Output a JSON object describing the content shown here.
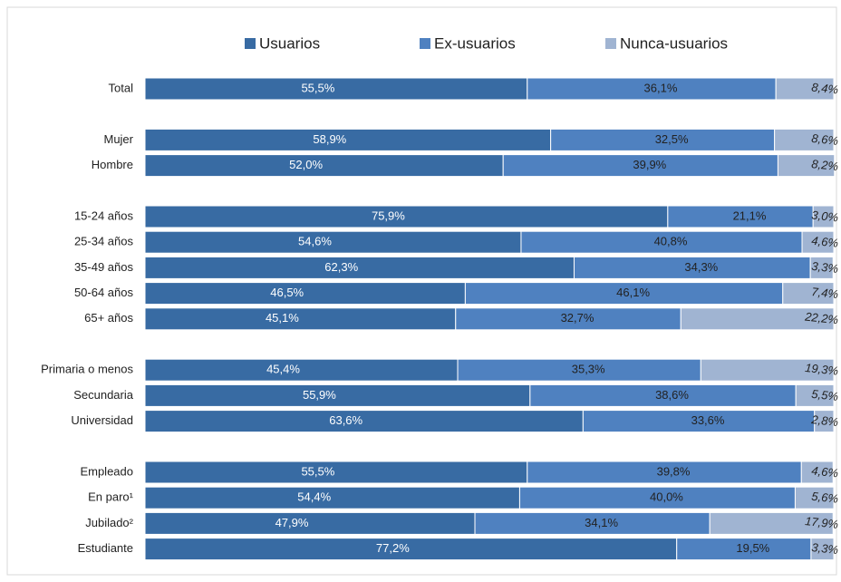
{
  "chart_data": {
    "type": "stacked-bar-horizontal",
    "categories": [
      "Total",
      null,
      "Mujer",
      "Hombre",
      null,
      "15-24 años",
      "25-34 años",
      "35-49 años",
      "50-64 años",
      "65+ años",
      null,
      "Primaria o menos",
      "Secundaria",
      "Universidad",
      null,
      "Empleado",
      "En paro¹",
      "Jubilado²",
      "Estudiante"
    ],
    "series": [
      {
        "name": "Usuarios",
        "color": "#386ba3",
        "values": [
          55.5,
          null,
          58.9,
          52.0,
          null,
          75.9,
          54.6,
          62.3,
          46.5,
          45.1,
          null,
          45.4,
          55.9,
          63.6,
          null,
          55.5,
          54.4,
          47.9,
          77.2
        ],
        "value_labels": [
          "55,5%",
          null,
          "58,9%",
          "52,0%",
          null,
          "75,9%",
          "54,6%",
          "62,3%",
          "46,5%",
          "45,1%",
          null,
          "45,4%",
          "55,9%",
          "63,6%",
          null,
          "55,5%",
          "54,4%",
          "47,9%",
          "77,2%"
        ]
      },
      {
        "name": "Ex-usuarios",
        "color": "#4f81c0",
        "values": [
          36.1,
          null,
          32.5,
          39.9,
          null,
          21.1,
          40.8,
          34.3,
          46.1,
          32.7,
          null,
          35.3,
          38.6,
          33.6,
          null,
          39.8,
          40.0,
          34.1,
          19.5
        ],
        "value_labels": [
          "36,1%",
          null,
          "32,5%",
          "39,9%",
          null,
          "21,1%",
          "40,8%",
          "34,3%",
          "46,1%",
          "32,7%",
          null,
          "35,3%",
          "38,6%",
          "33,6%",
          null,
          "39,8%",
          "40,0%",
          "34,1%",
          "19,5%"
        ]
      },
      {
        "name": "Nunca-usuarios",
        "color": "#a0b4d2",
        "values": [
          8.4,
          null,
          8.6,
          8.2,
          null,
          3.0,
          4.6,
          3.3,
          7.4,
          22.2,
          null,
          19.3,
          5.5,
          2.8,
          null,
          4.6,
          5.6,
          17.9,
          3.3
        ],
        "value_labels": [
          "8,4%",
          null,
          "8,6%",
          "8,2%",
          null,
          "3,0%",
          "4,6%",
          "3,3%",
          "7,4%",
          "22,2%",
          null,
          "19,3%",
          "5,5%",
          "2,8%",
          null,
          "4,6%",
          "5,6%",
          "17,9%",
          "3,3%"
        ]
      }
    ],
    "xlim": [
      0,
      100
    ]
  }
}
